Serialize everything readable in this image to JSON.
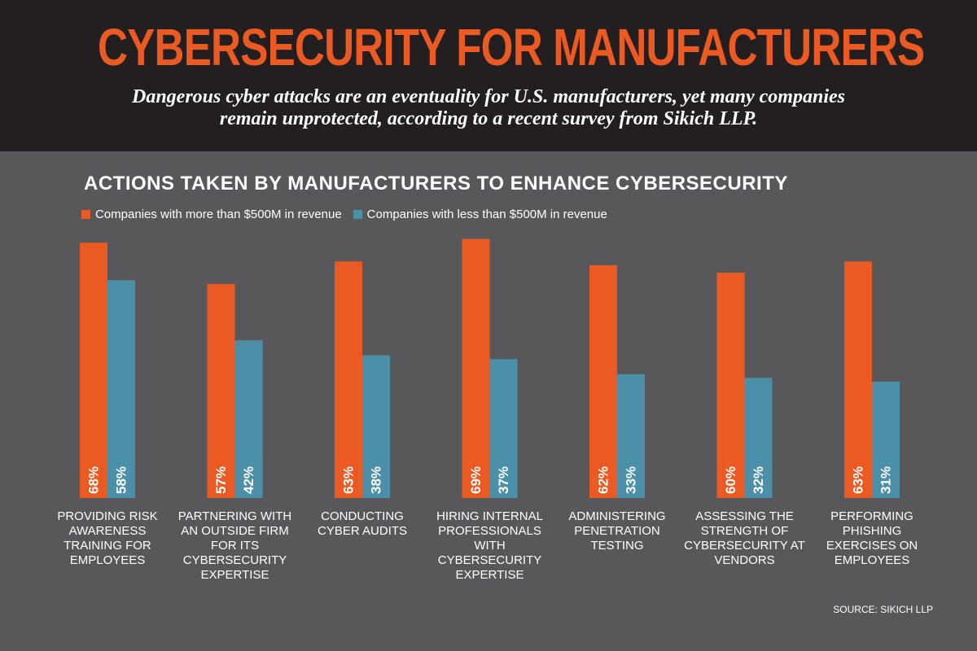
{
  "header": {
    "title": "CYBERSECURITY FOR MANUFACTURERS",
    "subtitle_lines": [
      "Dangerous cyber attacks are an eventuality for U.S. manufacturers, yet many companies",
      "remain unprotected, according to a recent survey from Sikich LLP."
    ]
  },
  "chart_data": {
    "type": "bar",
    "title": "ACTIONS TAKEN BY MANUFACTURERS TO ENHANCE CYBERSECURITY",
    "categories": [
      "PROVIDING RISK AWARENESS TRAINING FOR EMPLOYEES",
      "PARTNERING WITH AN OUTSIDE FIRM FOR ITS CYBERSECURITY EXPERTISE",
      "CONDUCTING CYBER AUDITS",
      "HIRING INTERNAL PROFESSIONALS WITH CYBERSECURITY EXPERTISE",
      "ADMINISTERING PENETRATION TESTING",
      "ASSESSING THE STRENGTH OF CYBERSECURITY AT VENDORS",
      "PERFORMING PHISHING EXERCISES ON EMPLOYEES"
    ],
    "series": [
      {
        "name": "Companies with more than $500M in revenue",
        "color": "#ec5a24",
        "values": [
          68,
          57,
          63,
          69,
          62,
          60,
          63
        ],
        "labels": [
          "68%",
          "57%",
          "63%",
          "69%",
          "62%",
          "60%",
          "63%"
        ]
      },
      {
        "name": "Companies with less than $500M in revenue",
        "color": "#4b90a8",
        "values": [
          58,
          42,
          38,
          37,
          33,
          32,
          31
        ],
        "labels": [
          "58%",
          "42%",
          "38%",
          "37%",
          "33%",
          "32%",
          "31%"
        ]
      }
    ],
    "ylim": [
      0,
      70
    ],
    "xlabel": "",
    "ylabel": "",
    "grid": false,
    "legend": "top-left",
    "source": "SOURCE: SIKICH LLP"
  }
}
